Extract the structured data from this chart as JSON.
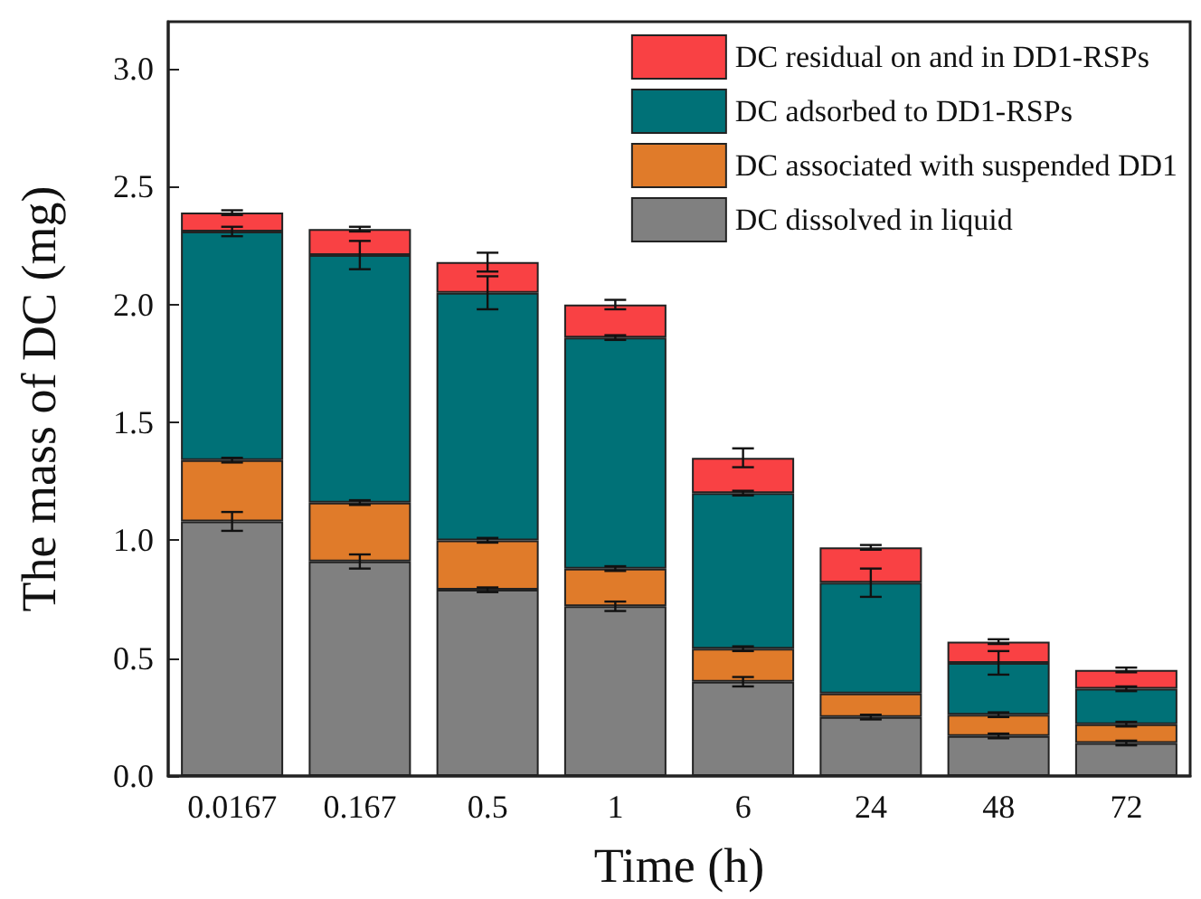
{
  "chart_data": {
    "type": "bar",
    "stacked": true,
    "xlabel": "Time (h)",
    "ylabel": "The mass of DC (mg)",
    "categories": [
      "0.0167",
      "0.167",
      "0.5",
      "1",
      "6",
      "24",
      "48",
      "72"
    ],
    "series": [
      {
        "name": "DC dissolved in liquid",
        "color": "#808080",
        "values": [
          1.08,
          0.91,
          0.79,
          0.72,
          0.4,
          0.25,
          0.17,
          0.14
        ],
        "errors": [
          0.04,
          0.03,
          0.01,
          0.02,
          0.02,
          0.01,
          0.01,
          0.01
        ]
      },
      {
        "name": "DC associated with suspended DD1",
        "color": "#e07b2a",
        "values": [
          0.26,
          0.25,
          0.21,
          0.16,
          0.14,
          0.1,
          0.09,
          0.08
        ],
        "errors": [
          0.01,
          0.01,
          0.01,
          0.01,
          0.01,
          null,
          0.01,
          0.01
        ]
      },
      {
        "name": "DC adsorbed to DD1-RSPs",
        "color": "#007177",
        "values": [
          0.97,
          1.05,
          1.05,
          0.98,
          0.66,
          0.47,
          0.22,
          0.15
        ],
        "errors": [
          0.02,
          0.06,
          0.07,
          0.01,
          0.01,
          0.06,
          0.05,
          0.01
        ]
      },
      {
        "name": "DC residual on and in DD1-RSPs",
        "color": "#f94144",
        "values": [
          0.08,
          0.11,
          0.13,
          0.14,
          0.15,
          0.15,
          0.09,
          0.08
        ],
        "errors": [
          0.01,
          0.01,
          0.04,
          0.02,
          0.04,
          0.01,
          0.01,
          0.01
        ]
      }
    ],
    "ylim": [
      0,
      3.2
    ],
    "yticks": [
      {
        "value": 0,
        "label": "0.0"
      },
      {
        "value": 0.5,
        "label": "0.5"
      },
      {
        "value": 1,
        "label": "1.0"
      },
      {
        "value": 1.5,
        "label": "1.5"
      },
      {
        "value": 2,
        "label": "2.0"
      },
      {
        "value": 2.5,
        "label": "2.5"
      },
      {
        "value": 3,
        "label": "3.0"
      }
    ],
    "legend": "top right",
    "grid": false
  }
}
